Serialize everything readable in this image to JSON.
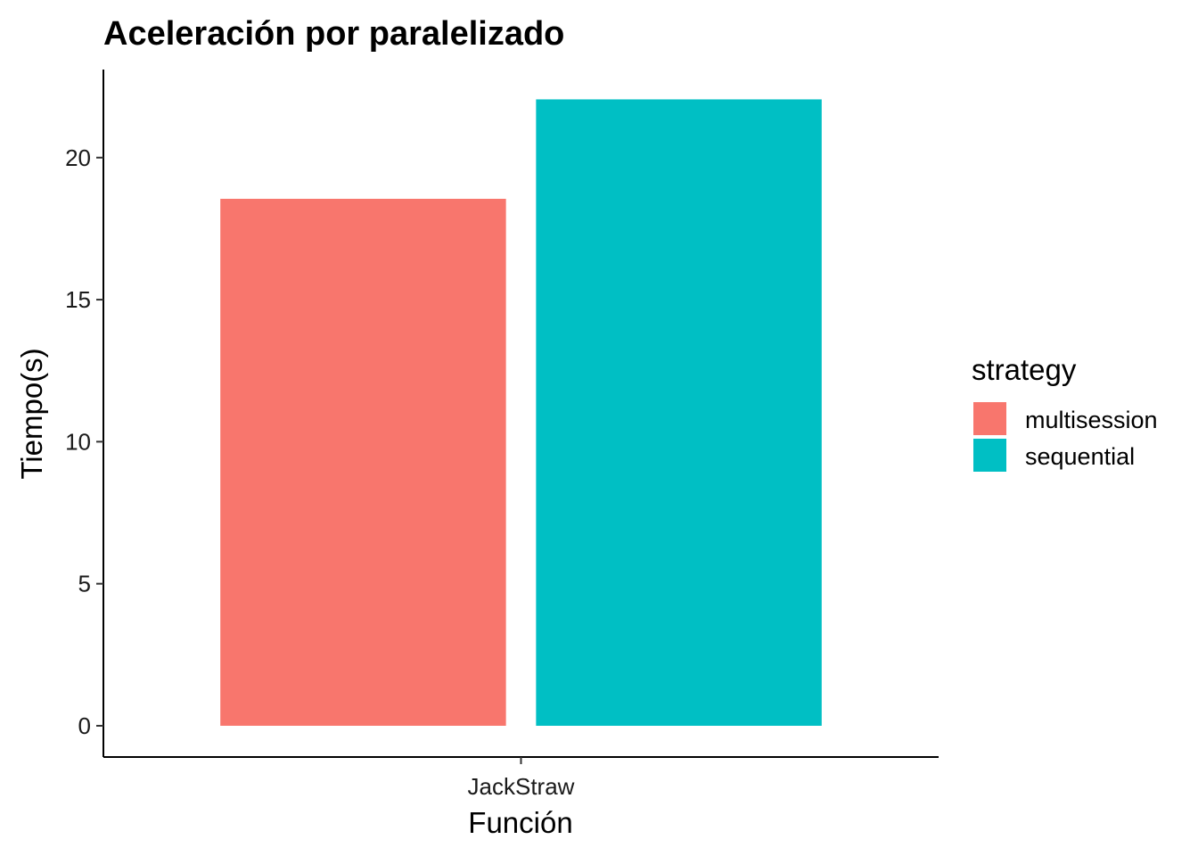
{
  "chart_data": {
    "type": "bar",
    "title": "Aceleración por paralelizado",
    "xlabel": "Función",
    "ylabel": "Tiempo(s)",
    "categories": [
      "JackStraw"
    ],
    "series": [
      {
        "name": "multisession",
        "values": [
          18.55
        ],
        "color": "#F8766D"
      },
      {
        "name": "sequential",
        "values": [
          22.05
        ],
        "color": "#00BFC4"
      }
    ],
    "ylim": [
      -1.1,
      23.1
    ],
    "yticks": [
      0,
      5,
      10,
      15,
      20
    ],
    "grid": false,
    "legend": {
      "title": "strategy",
      "position": "right"
    }
  }
}
